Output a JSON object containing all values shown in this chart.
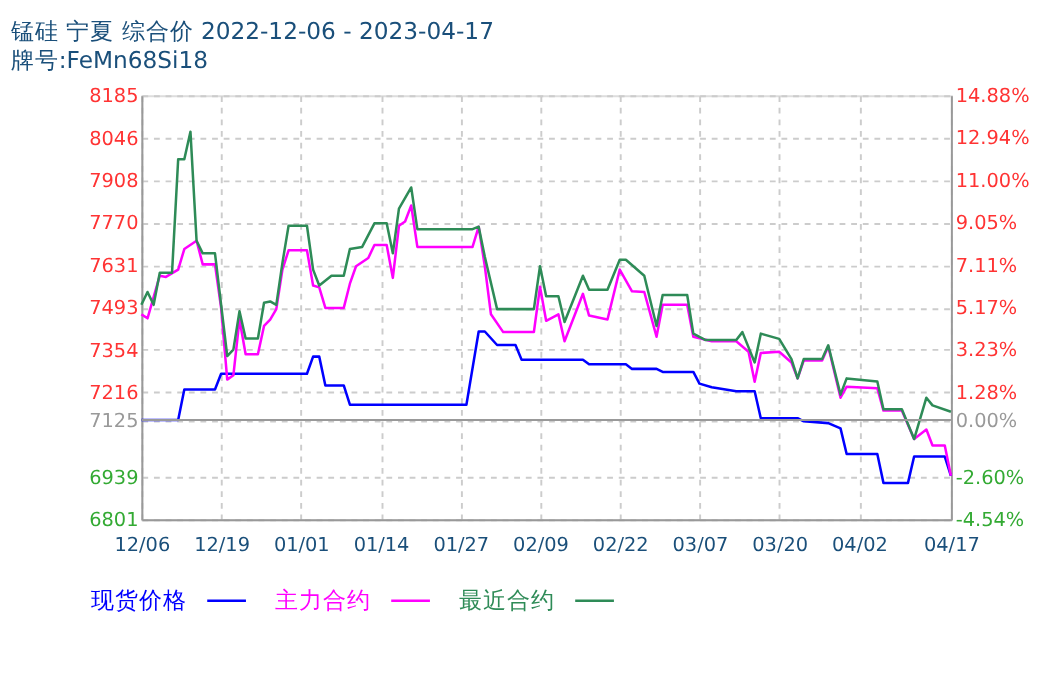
{
  "chart_data": {
    "type": "line",
    "title": "锰硅  宁夏  综合价  2022-12-06 - 2023-04-17",
    "subtitle": "牌号:FeMn68Si18",
    "xlim": [
      "2022-12-06",
      "2023-04-17"
    ],
    "xticks": [
      {
        "value": "2022-12-06",
        "label": "12/06"
      },
      {
        "value": "2022-12-19",
        "label": "12/19"
      },
      {
        "value": "2023-01-01",
        "label": "01/01"
      },
      {
        "value": "2023-01-14",
        "label": "01/14"
      },
      {
        "value": "2023-01-27",
        "label": "01/27"
      },
      {
        "value": "2023-02-09",
        "label": "02/09"
      },
      {
        "value": "2023-02-22",
        "label": "02/22"
      },
      {
        "value": "2023-03-07",
        "label": "03/07"
      },
      {
        "value": "2023-03-20",
        "label": "03/20"
      },
      {
        "value": "2023-04-02",
        "label": "04/02"
      },
      {
        "value": "2023-04-17",
        "label": "04/17"
      }
    ],
    "ylim": [
      6801,
      8185
    ],
    "yticks": [
      6801,
      6939,
      7125,
      7216,
      7354,
      7493,
      7631,
      7770,
      7908,
      8046,
      8185
    ],
    "y2lim": [
      -4.54,
      14.88
    ],
    "y2ticks": [
      {
        "value": -4.54,
        "label": "-4.54%"
      },
      {
        "value": -2.6,
        "label": "-2.60%"
      },
      {
        "value": 0,
        "label": "0.00%"
      },
      {
        "value": 1.28,
        "label": "1.28%"
      },
      {
        "value": 3.23,
        "label": "3.23%"
      },
      {
        "value": 5.17,
        "label": "5.17%"
      },
      {
        "value": 7.11,
        "label": "7.11%"
      },
      {
        "value": 9.05,
        "label": "9.05%"
      },
      {
        "value": 11.0,
        "label": "11.00%"
      },
      {
        "value": 12.94,
        "label": "12.94%"
      },
      {
        "value": 14.88,
        "label": "14.88%"
      }
    ],
    "ref_lines": [
      {
        "axis": "y",
        "value": 7125,
        "color": "#999999"
      }
    ],
    "grid": true,
    "legend": "bottom",
    "line_style": "solid",
    "marker": "none",
    "series": [
      {
        "name": "现货价格",
        "color": "#0000ff",
        "x": [
          "2022-12-06",
          "2022-12-12",
          "2022-12-13",
          "2022-12-18",
          "2022-12-19",
          "2023-01-02",
          "2023-01-03",
          "2023-01-04",
          "2023-01-05",
          "2023-01-08",
          "2023-01-09",
          "2023-01-28",
          "2023-01-30",
          "2023-01-31",
          "2023-02-02",
          "2023-02-05",
          "2023-02-06",
          "2023-02-16",
          "2023-02-17",
          "2023-02-23",
          "2023-02-24",
          "2023-02-28",
          "2023-03-01",
          "2023-03-06",
          "2023-03-07",
          "2023-03-09",
          "2023-03-13",
          "2023-03-16",
          "2023-03-17",
          "2023-03-23",
          "2023-03-24",
          "2023-03-28",
          "2023-03-30",
          "2023-03-31",
          "2023-04-05",
          "2023-04-06",
          "2023-04-10",
          "2023-04-11",
          "2023-04-16",
          "2023-04-17"
        ],
        "values": [
          7125,
          7125,
          7225,
          7225,
          7276,
          7276,
          7332,
          7332,
          7238,
          7238,
          7175,
          7175,
          7414,
          7414,
          7370,
          7370,
          7322,
          7322,
          7307,
          7307,
          7292,
          7292,
          7282,
          7282,
          7244,
          7232,
          7219,
          7219,
          7131,
          7131,
          7121,
          7115,
          7098,
          7014,
          7014,
          6920,
          6920,
          7006,
          7006,
          6943
        ]
      },
      {
        "name": "主力合约",
        "color": "#ff00ff",
        "x": [
          "2022-12-06",
          "2022-12-07",
          "2022-12-09",
          "2022-12-10",
          "2022-12-12",
          "2022-12-13",
          "2022-12-15",
          "2022-12-16",
          "2022-12-18",
          "2022-12-19",
          "2022-12-20",
          "2022-12-21",
          "2022-12-22",
          "2022-12-23",
          "2022-12-25",
          "2022-12-26",
          "2022-12-27",
          "2022-12-28",
          "2022-12-29",
          "2022-12-30",
          "2023-01-02",
          "2023-01-03",
          "2023-01-04",
          "2023-01-05",
          "2023-01-08",
          "2023-01-09",
          "2023-01-10",
          "2023-01-12",
          "2023-01-13",
          "2023-01-15",
          "2023-01-16",
          "2023-01-17",
          "2023-01-18",
          "2023-01-19",
          "2023-01-20",
          "2023-01-29",
          "2023-01-30",
          "2023-01-31",
          "2023-02-01",
          "2023-02-03",
          "2023-02-08",
          "2023-02-09",
          "2023-02-10",
          "2023-02-12",
          "2023-02-13",
          "2023-02-16",
          "2023-02-17",
          "2023-02-20",
          "2023-02-22",
          "2023-02-24",
          "2023-02-26",
          "2023-02-28",
          "2023-03-01",
          "2023-03-05",
          "2023-03-06",
          "2023-03-09",
          "2023-03-13",
          "2023-03-15",
          "2023-03-16",
          "2023-03-17",
          "2023-03-20",
          "2023-03-22",
          "2023-03-23",
          "2023-03-24",
          "2023-03-27",
          "2023-03-28",
          "2023-03-30",
          "2023-03-31",
          "2023-04-05",
          "2023-04-06",
          "2023-04-09",
          "2023-04-11",
          "2023-04-13",
          "2023-04-14",
          "2023-04-16",
          "2023-04-17"
        ],
        "values": [
          7470,
          7457,
          7596,
          7592,
          7616,
          7683,
          7710,
          7633,
          7633,
          7491,
          7257,
          7271,
          7453,
          7340,
          7340,
          7432,
          7453,
          7487,
          7616,
          7679,
          7679,
          7564,
          7558,
          7491,
          7491,
          7570,
          7627,
          7654,
          7696,
          7696,
          7589,
          7759,
          7773,
          7825,
          7690,
          7690,
          7756,
          7627,
          7470,
          7412,
          7412,
          7560,
          7449,
          7470,
          7382,
          7537,
          7466,
          7453,
          7616,
          7545,
          7543,
          7397,
          7501,
          7501,
          7397,
          7382,
          7382,
          7348,
          7250,
          7344,
          7348,
          7313,
          7261,
          7319,
          7319,
          7365,
          7198,
          7234,
          7229,
          7156,
          7156,
          7063,
          7094,
          7042,
          7042,
          6943
        ]
      },
      {
        "name": "最近合约",
        "color": "#2e8b57",
        "x": [
          "2022-12-06",
          "2022-12-07",
          "2022-12-08",
          "2022-12-09",
          "2022-12-11",
          "2022-12-12",
          "2022-12-13",
          "2022-12-14",
          "2022-12-15",
          "2022-12-16",
          "2022-12-18",
          "2022-12-20",
          "2022-12-21",
          "2022-12-22",
          "2022-12-23",
          "2022-12-25",
          "2022-12-26",
          "2022-12-27",
          "2022-12-28",
          "2022-12-29",
          "2022-12-30",
          "2023-01-02",
          "2023-01-03",
          "2023-01-04",
          "2023-01-06",
          "2023-01-08",
          "2023-01-09",
          "2023-01-11",
          "2023-01-13",
          "2023-01-15",
          "2023-01-16",
          "2023-01-17",
          "2023-01-19",
          "2023-01-20",
          "2023-01-29",
          "2023-01-30",
          "2023-01-31",
          "2023-02-02",
          "2023-02-08",
          "2023-02-09",
          "2023-02-10",
          "2023-02-12",
          "2023-02-13",
          "2023-02-16",
          "2023-02-17",
          "2023-02-20",
          "2023-02-22",
          "2023-02-23",
          "2023-02-26",
          "2023-02-28",
          "2023-03-01",
          "2023-03-05",
          "2023-03-06",
          "2023-03-08",
          "2023-03-13",
          "2023-03-14",
          "2023-03-16",
          "2023-03-17",
          "2023-03-20",
          "2023-03-22",
          "2023-03-23",
          "2023-03-24",
          "2023-03-27",
          "2023-03-28",
          "2023-03-30",
          "2023-03-31",
          "2023-04-05",
          "2023-04-06",
          "2023-04-09",
          "2023-04-11",
          "2023-04-13",
          "2023-04-14",
          "2023-04-17"
        ],
        "values": [
          7501,
          7543,
          7501,
          7606,
          7606,
          7976,
          7976,
          8066,
          7710,
          7669,
          7669,
          7334,
          7355,
          7480,
          7391,
          7391,
          7508,
          7512,
          7501,
          7638,
          7759,
          7759,
          7616,
          7564,
          7596,
          7596,
          7683,
          7690,
          7767,
          7767,
          7669,
          7815,
          7884,
          7748,
          7748,
          7756,
          7658,
          7487,
          7487,
          7627,
          7529,
          7529,
          7445,
          7596,
          7550,
          7550,
          7648,
          7648,
          7596,
          7432,
          7533,
          7533,
          7407,
          7386,
          7386,
          7412,
          7313,
          7407,
          7390,
          7324,
          7261,
          7324,
          7324,
          7369,
          7208,
          7261,
          7251,
          7160,
          7160,
          7063,
          7198,
          7173,
          7152
        ]
      }
    ]
  }
}
